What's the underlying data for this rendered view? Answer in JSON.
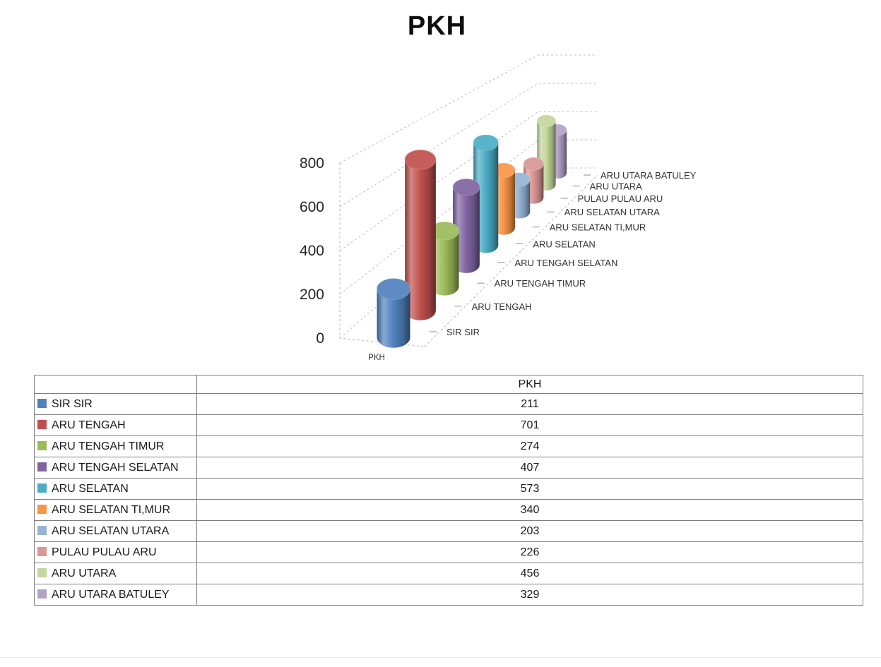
{
  "title": "PKH",
  "chart_data": {
    "type": "bar",
    "subtype": "3d-cylinder",
    "title": "PKH",
    "categories": [
      "SIR SIR",
      "ARU TENGAH",
      "ARU TENGAH TIMUR",
      "ARU TENGAH SELATAN",
      "ARU SELATAN",
      "ARU SELATAN TI,MUR",
      "ARU SELATAN UTARA",
      "PULAU PULAU ARU",
      "ARU UTARA",
      "ARU UTARA BATULEY"
    ],
    "values": [
      211,
      701,
      274,
      407,
      573,
      340,
      203,
      226,
      456,
      329
    ],
    "colors": [
      "#4F81BD",
      "#C0504D",
      "#9BBB59",
      "#8064A2",
      "#4BACC6",
      "#F79646",
      "#95B3D7",
      "#D99694",
      "#C3D69B",
      "#B3A2C7"
    ],
    "xlabel": "PKH",
    "ylabel": "",
    "y_ticks": [
      0,
      200,
      400,
      600,
      800
    ],
    "ylim": [
      0,
      800
    ],
    "grid": true,
    "legend_position": "table-below"
  },
  "table": {
    "value_column_header": "PKH"
  }
}
